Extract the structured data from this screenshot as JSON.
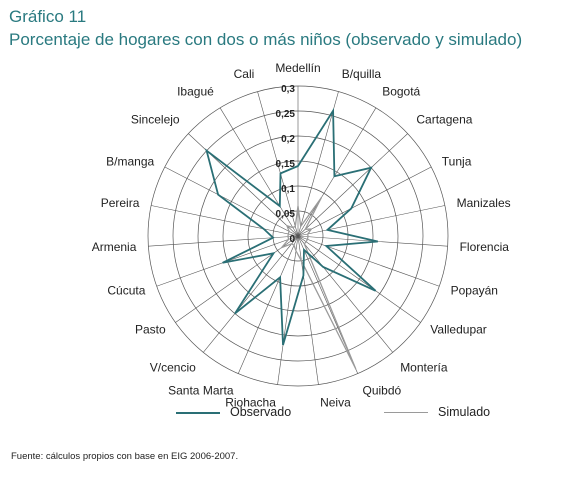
{
  "header": {
    "title": "Gráfico 11",
    "subtitle": "Porcentaje de hogares con dos o más niños (observado y simulado)"
  },
  "chart_data": {
    "type": "radar",
    "categories": [
      "Medellín",
      "B/quilla",
      "Bogotá",
      "Cartagena",
      "Tunja",
      "Manizales",
      "Florencia",
      "Popayán",
      "Valledupar",
      "Montería",
      "Quibdó",
      "Neiva",
      "Riohacha",
      "Santa Marta",
      "V/cencio",
      "Pasto",
      "Cúcuta",
      "Armenia",
      "Pereira",
      "B/manga",
      "Sincelejo",
      "Ibagué",
      "Cali"
    ],
    "radial_ticks": [
      "0",
      "0,05",
      "0,1",
      "0,15",
      "0,2",
      "0,25",
      "0,3"
    ],
    "rlim": [
      0,
      0.3
    ],
    "series": [
      {
        "name": "Observado",
        "values": [
          0.14,
          0.26,
          0.14,
          0.2,
          0.12,
          0.06,
          0.16,
          0.06,
          0.19,
          0.08,
          0.03,
          0.08,
          0.22,
          0.09,
          0.2,
          0.06,
          0.16,
          0.05,
          0.07,
          0.18,
          0.25,
          0.07,
          0.13
        ]
      },
      {
        "name": "Simulado",
        "values": [
          0.06,
          0.02,
          0.09,
          0.02,
          0.03,
          0.02,
          0.02,
          0.02,
          0.02,
          0.02,
          0.29,
          0.05,
          0.03,
          0.02,
          0.02,
          0.04,
          0.02,
          0.02,
          0.02,
          0.02,
          0.03,
          0.02,
          0.02
        ]
      }
    ],
    "colors": {
      "Observado": "#2a6f75",
      "Simulado": "#9a9a9a",
      "grid": "#555555"
    },
    "legend_position": "bottom"
  },
  "legend": {
    "observado": "Observado",
    "simulado": "Simulado"
  },
  "footer": {
    "source": "Fuente: cálculos propios con base en EIG 2006-2007."
  }
}
